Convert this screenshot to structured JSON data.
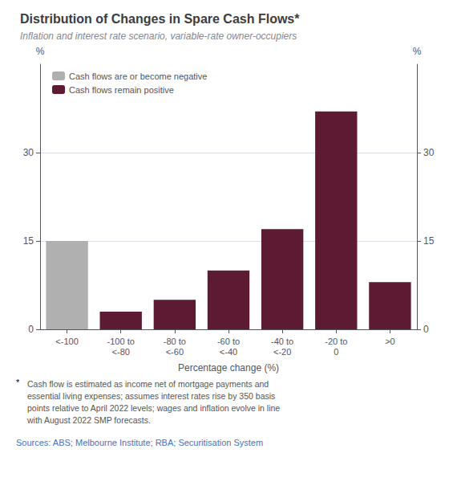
{
  "chart_data": {
    "type": "bar",
    "title": "Distribution of Changes in Spare Cash Flows*",
    "subtitle": "Inflation and interest rate scenario, variable-rate owner-occupiers",
    "categories": [
      "<-100",
      "-100 to\n<-80",
      "-80 to\n<-60",
      "-60 to\n<-40",
      "-40 to\n<-20",
      "-20 to\n0",
      ">0"
    ],
    "values": [
      15,
      3,
      5,
      10,
      17,
      37,
      8
    ],
    "colors": [
      "#b0b0b0",
      "#5c1a33",
      "#5c1a33",
      "#5c1a33",
      "#5c1a33",
      "#5c1a33",
      "#5c1a33"
    ],
    "xlabel": "Percentage change (%)",
    "ylabel": "%",
    "y2label": "%",
    "ylim": [
      0,
      45
    ],
    "yticks": [
      0,
      15,
      30
    ],
    "y2lim": [
      0,
      45
    ],
    "y2ticks": [
      0,
      15,
      30
    ],
    "grid": true,
    "legend": "upper left",
    "legend_entries": [
      {
        "name": "Cash flows are or become negative",
        "color": "#b0b0b0"
      },
      {
        "name": "Cash flows remain positive",
        "color": "#5c1a33"
      }
    ],
    "footnote_marker": "*",
    "footnote": "Cash flow is estimated as income net of mortgage payments and\nessential living expenses; assumes interest rates rise by 350 basis\npoints relative to April 2022 levels; wages and inflation evolve in line\nwith August 2022 SMP forecasts.",
    "sources": "Sources: ABS; Melbourne Institute; RBA; Securitisation System"
  }
}
